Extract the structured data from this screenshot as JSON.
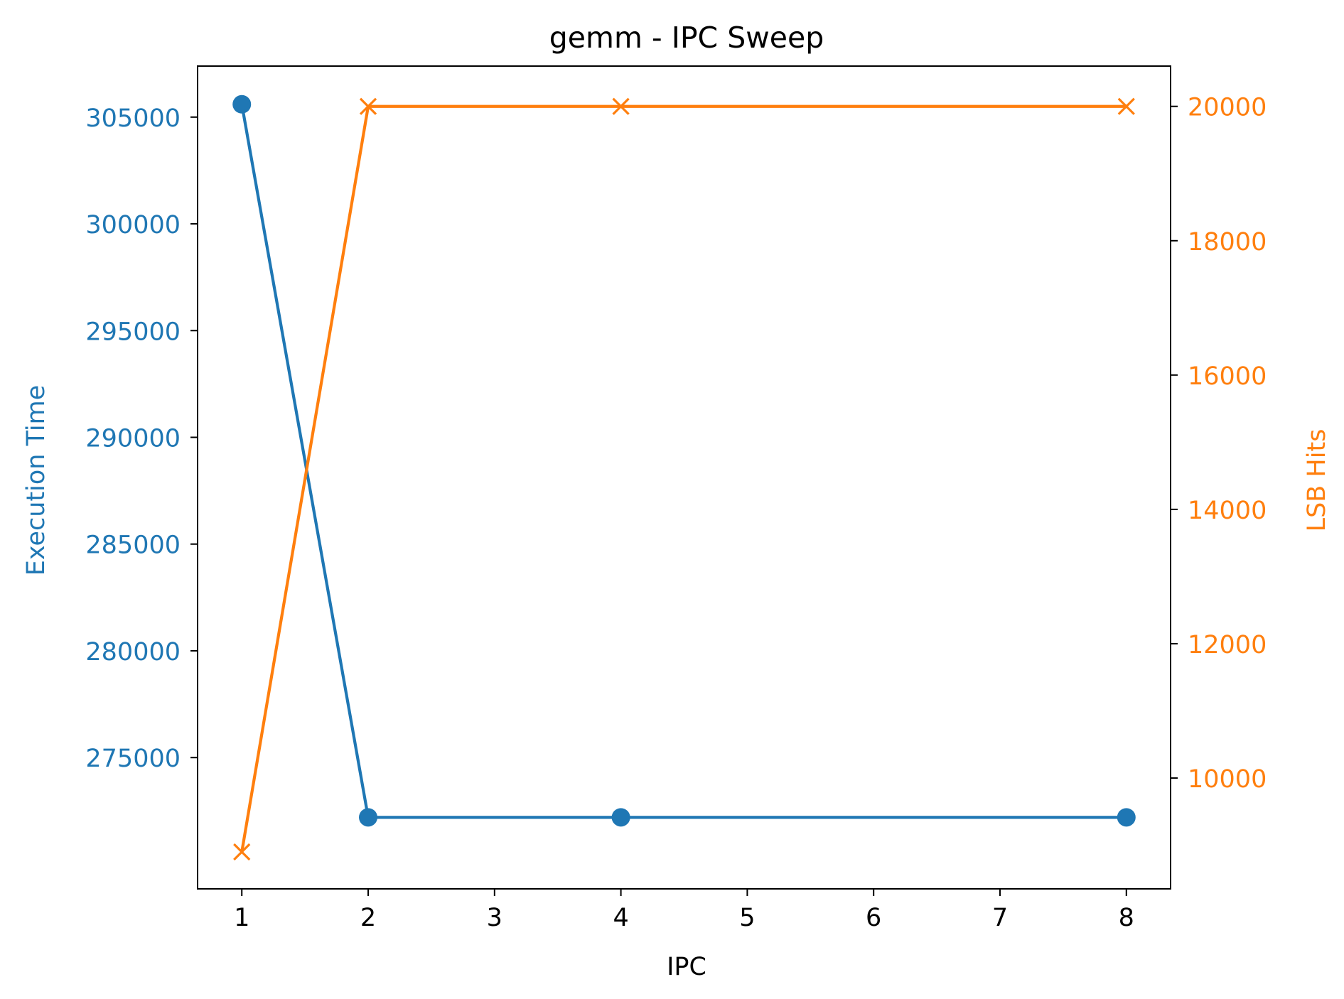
{
  "chart_data": {
    "type": "line",
    "title": "gemm - IPC Sweep",
    "xlabel": "IPC",
    "ylabel_left": "Execution Time",
    "ylabel_right": "LSB Hits",
    "xlim": [
      0.65,
      8.35
    ],
    "ylim_left": [
      268850,
      307390
    ],
    "ylim_right": [
      8350,
      20600
    ],
    "x_ticks": [
      1,
      2,
      3,
      4,
      5,
      6,
      7,
      8
    ],
    "y_left_ticks": [
      275000,
      280000,
      285000,
      290000,
      295000,
      300000,
      305000
    ],
    "y_right_ticks": [
      10000,
      12000,
      14000,
      16000,
      18000,
      20000
    ],
    "grid": false,
    "series": [
      {
        "name": "Execution Time",
        "axis": "left",
        "color": "#1f77b4",
        "marker": "circle",
        "x": [
          1,
          2,
          4,
          8
        ],
        "y": [
          305600,
          272200,
          272200,
          272200
        ]
      },
      {
        "name": "LSB Hits",
        "axis": "right",
        "color": "#ff7f0e",
        "marker": "x",
        "x": [
          1,
          2,
          4,
          8
        ],
        "y": [
          8900,
          20000,
          20000,
          20000
        ]
      }
    ]
  }
}
